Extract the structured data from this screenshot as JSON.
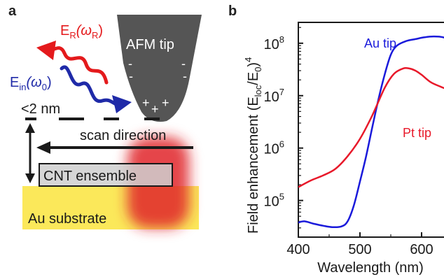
{
  "panel_a": {
    "label": "a",
    "afm_tip": "AFM tip",
    "tip_charges_neg": "-",
    "tip_charges_pos": "+",
    "e_r": "E",
    "e_r_sub": "R",
    "e_r_arg": "(ω",
    "e_r_arg_sub": "R",
    "e_r_close": ")",
    "e_in": "E",
    "e_in_sub": "in",
    "e_in_arg": "(ω",
    "e_in_arg_sub": "0",
    "e_in_close": ")",
    "gap": "<2 nm",
    "scan": "scan direction",
    "cnt": "CNT ensemble",
    "substrate": "Au substrate",
    "colors": {
      "tip": "#555555",
      "e_r": "#e41a1c",
      "e_in": "#1f2aa8",
      "substrate": "#fbe85a",
      "cnt_box": "#cfcfcf",
      "hotspot": "#e0242a"
    }
  },
  "panel_b": {
    "label": "b",
    "ylabel": "Field enhancement (E",
    "ylabel_sub1": "loc",
    "ylabel_mid": "/E",
    "ylabel_sub2": "0",
    "ylabel_end": ")",
    "ylabel_sup": "4",
    "xlabel": "Wavelength (nm)",
    "y_tick_base": "10",
    "y_ticks_exp": [
      "5",
      "6",
      "7",
      "8"
    ],
    "x_ticks": [
      "400",
      "500",
      "600"
    ]
  },
  "chart_data": {
    "type": "line",
    "title": "",
    "xlabel": "Wavelength (nm)",
    "ylabel": "Field enhancement (Eloc/E0)^4",
    "y_scale": "log",
    "xlim": [
      400,
      650
    ],
    "ylim": [
      20000,
      250000000
    ],
    "x_ticks": [
      400,
      500,
      600
    ],
    "y_ticks": [
      100000,
      1000000,
      10000000,
      100000000
    ],
    "series": [
      {
        "name": "Au tip",
        "color": "#1a1adb",
        "x": [
          400,
          410,
          425,
          440,
          455,
          470,
          480,
          490,
          500,
          510,
          520,
          530,
          540,
          550,
          560,
          575,
          590,
          605,
          620,
          635,
          650
        ],
        "y": [
          38000,
          40000,
          36000,
          33000,
          31000,
          32000,
          40000,
          80000,
          230000,
          700000,
          2500000,
          8500000,
          25000000,
          60000000,
          90000000,
          110000000,
          120000000,
          130000000,
          135000000,
          130000000,
          110000000
        ]
      },
      {
        "name": "Pt tip",
        "color": "#e8192a",
        "x": [
          400,
          420,
          440,
          460,
          480,
          500,
          520,
          540,
          555,
          570,
          580,
          590,
          600,
          615,
          630,
          650
        ],
        "y": [
          180000,
          240000,
          300000,
          400000,
          700000,
          1500000,
          4200000,
          14000000,
          26000000,
          33000000,
          33000000,
          30000000,
          25000000,
          18000000,
          15000000,
          12000000
        ]
      }
    ]
  }
}
